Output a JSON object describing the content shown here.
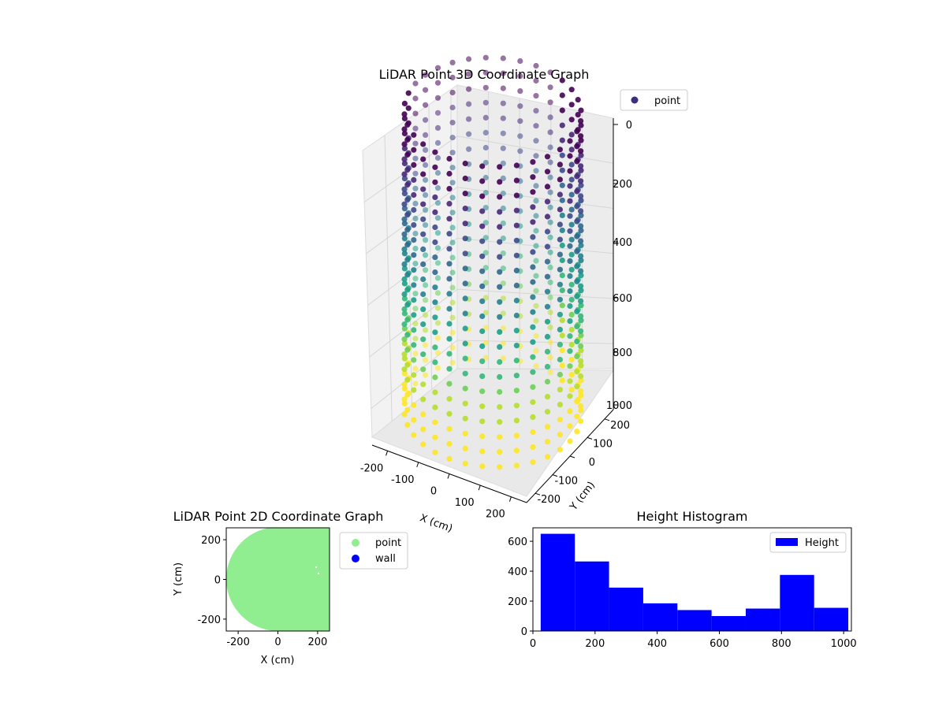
{
  "chart_data": [
    {
      "type": "scatter",
      "projection": "3d",
      "title": "LiDAR Point 3D Coordinate Graph",
      "xlabel": "X (cm)",
      "ylabel": "Y (cm)",
      "zlabel": "",
      "x_ticks": [
        "-200",
        "-100",
        "0",
        "100",
        "200"
      ],
      "y_ticks": [
        "-200",
        "-100",
        "0",
        "100",
        "200"
      ],
      "z_ticks": [
        "0",
        "200",
        "400",
        "600",
        "800",
        "1000"
      ],
      "z_inverted": true,
      "xlim": [
        -250,
        250
      ],
      "ylim": [
        -250,
        250
      ],
      "zlim": [
        1050,
        0
      ],
      "colormap": "viridis",
      "legend": [
        {
          "name": "point",
          "color": "#3b2f7f"
        }
      ],
      "legend_position": "top-right",
      "series": [
        {
          "name": "point",
          "shape": "cylinder",
          "center": [
            0,
            0
          ],
          "radius": 250,
          "z_range": [
            0,
            1000
          ],
          "color_by": "height"
        }
      ],
      "grid": true
    },
    {
      "type": "scatter",
      "title": "LiDAR Point 2D Coordinate Graph",
      "xlabel": "X (cm)",
      "ylabel": "Y (cm)",
      "x_ticks": [
        "-200",
        "0",
        "200"
      ],
      "y_ticks": [
        "-200",
        "0",
        "200"
      ],
      "xlim": [
        -260,
        260
      ],
      "ylim": [
        -260,
        260
      ],
      "legend": [
        {
          "name": "point",
          "color": "#90ee90"
        },
        {
          "name": "wall",
          "color": "#0000ff"
        }
      ],
      "legend_position": "outside-right",
      "grid": false
    },
    {
      "type": "bar",
      "subtype": "histogram",
      "title": "Height Histogram",
      "bin_edges": [
        25,
        135,
        245,
        355,
        465,
        575,
        685,
        795,
        905,
        1015
      ],
      "values": [
        650,
        465,
        290,
        185,
        140,
        100,
        150,
        375,
        155
      ],
      "x_ticks": [
        "0",
        "200",
        "400",
        "600",
        "800",
        "1000"
      ],
      "y_ticks": [
        "0",
        "200",
        "400",
        "600"
      ],
      "xlim": [
        0,
        1025
      ],
      "ylim": [
        0,
        690
      ],
      "color": "#0000ff",
      "legend": [
        {
          "name": "Height",
          "color": "#0000ff"
        }
      ],
      "legend_position": "top-right",
      "grid": false
    }
  ]
}
